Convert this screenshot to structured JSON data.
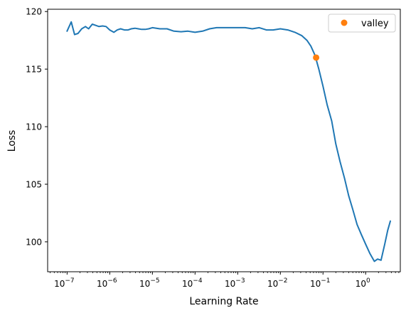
{
  "chart_data": {
    "type": "line",
    "title": "",
    "xlabel": "Learning Rate",
    "ylabel": "Loss",
    "xscale": "log",
    "xlim": [
      3.5e-08,
      6.5
    ],
    "ylim": [
      97.4,
      120.2
    ],
    "grid": false,
    "legend_position": "top-right",
    "x_ticks": [
      {
        "value": 1e-07,
        "base": "10",
        "exp": "−7"
      },
      {
        "value": 1e-06,
        "base": "10",
        "exp": "−6"
      },
      {
        "value": 1e-05,
        "base": "10",
        "exp": "−5"
      },
      {
        "value": 0.0001,
        "base": "10",
        "exp": "−4"
      },
      {
        "value": 0.001,
        "base": "10",
        "exp": "−3"
      },
      {
        "value": 0.01,
        "base": "10",
        "exp": "−2"
      },
      {
        "value": 0.1,
        "base": "10",
        "exp": "−1"
      },
      {
        "value": 1,
        "base": "10",
        "exp": "0"
      }
    ],
    "y_ticks": [
      {
        "value": 100,
        "label": "100"
      },
      {
        "value": 105,
        "label": "105"
      },
      {
        "value": 110,
        "label": "110"
      },
      {
        "value": 115,
        "label": "115"
      },
      {
        "value": 120,
        "label": "120"
      }
    ],
    "series": [
      {
        "color": "#1f77b4",
        "x": [
          1e-07,
          1.25e-07,
          1.5e-07,
          1.8e-07,
          2.2e-07,
          2.7e-07,
          3.2e-07,
          3.9e-07,
          4.7e-07,
          5.6e-07,
          6.8e-07,
          8.2e-07,
          1e-06,
          1.25e-06,
          1.5e-06,
          1.8e-06,
          2.2e-06,
          2.7e-06,
          3.2e-06,
          3.9e-06,
          4.7e-06,
          5.6e-06,
          6.8e-06,
          8.2e-06,
          1e-05,
          1.5e-05,
          2.2e-05,
          3.2e-05,
          4.7e-05,
          6.8e-05,
          0.0001,
          0.00015,
          0.00022,
          0.00032,
          0.00047,
          0.00068,
          0.001,
          0.0015,
          0.0022,
          0.0032,
          0.0047,
          0.0068,
          0.01,
          0.015,
          0.022,
          0.032,
          0.042,
          0.052,
          0.065,
          0.08,
          0.1,
          0.125,
          0.16,
          0.2,
          0.25,
          0.32,
          0.4,
          0.5,
          0.63,
          0.8,
          1.0,
          1.25,
          1.6,
          1.9,
          2.3,
          2.8,
          3.3,
          3.8
        ],
        "y": [
          118.3,
          119.1,
          118.0,
          118.1,
          118.5,
          118.7,
          118.5,
          118.9,
          118.8,
          118.7,
          118.75,
          118.7,
          118.4,
          118.2,
          118.4,
          118.5,
          118.4,
          118.4,
          118.5,
          118.55,
          118.5,
          118.45,
          118.45,
          118.5,
          118.6,
          118.5,
          118.5,
          118.3,
          118.25,
          118.3,
          118.2,
          118.3,
          118.5,
          118.6,
          118.6,
          118.6,
          118.6,
          118.6,
          118.5,
          118.6,
          118.4,
          118.4,
          118.5,
          118.4,
          118.2,
          117.9,
          117.5,
          117.0,
          116.2,
          115.0,
          113.5,
          111.9,
          110.5,
          108.5,
          107.0,
          105.5,
          104.0,
          102.8,
          101.5,
          100.6,
          99.8,
          99.0,
          98.3,
          98.5,
          98.4,
          99.8,
          101.0,
          101.8
        ]
      }
    ],
    "markers": [
      {
        "name": "valley",
        "x": 0.069,
        "y": 116.0,
        "color": "#ff7f0e"
      }
    ]
  }
}
